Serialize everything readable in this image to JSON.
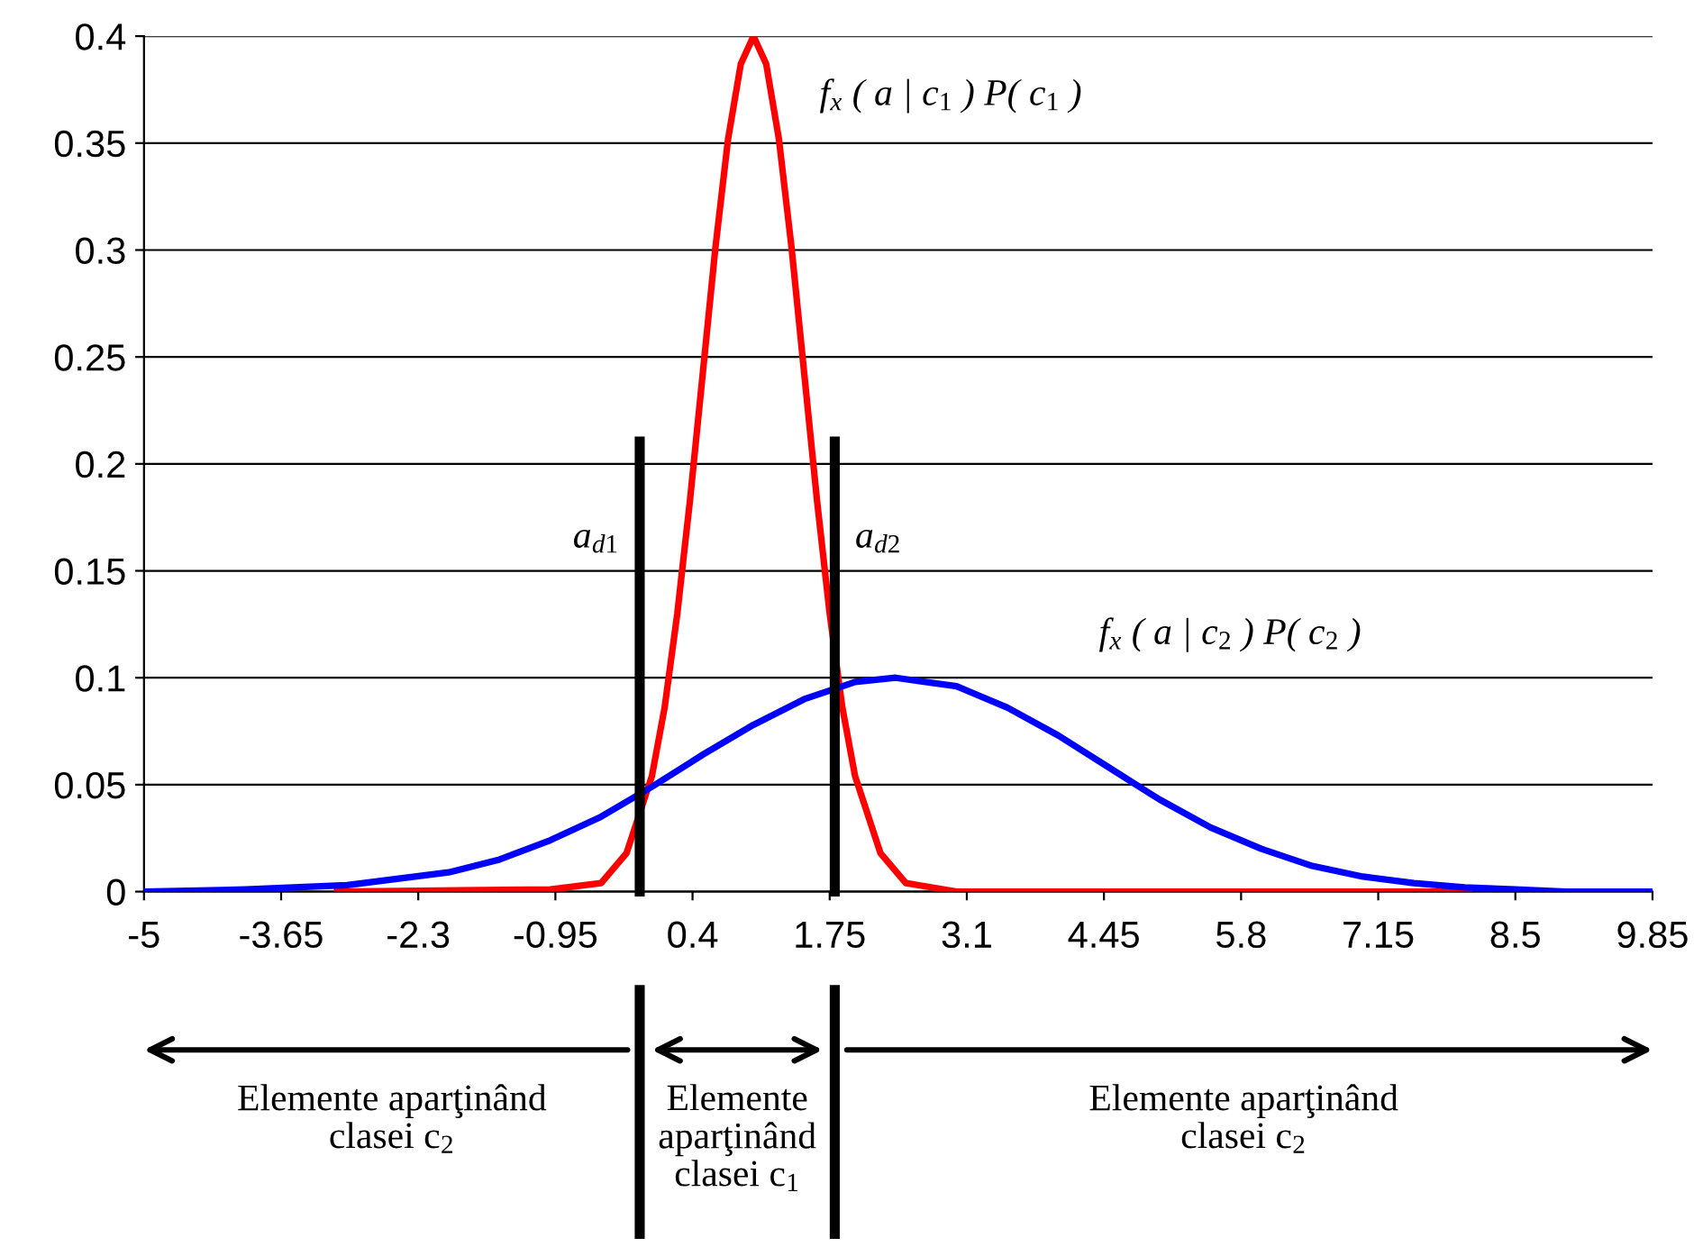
{
  "chart_data": {
    "type": "line",
    "xlim": [
      -5,
      9.85
    ],
    "ylim": [
      0,
      0.4
    ],
    "xticks": [
      -5,
      -3.65,
      -2.3,
      -0.95,
      0.4,
      1.75,
      3.1,
      4.45,
      5.8,
      7.15,
      8.5,
      9.85
    ],
    "yticks": [
      0,
      0.05,
      0.1,
      0.15,
      0.2,
      0.25,
      0.3,
      0.35,
      0.4
    ],
    "grid": "y",
    "series": [
      {
        "name": "f$_{x}$ ( a | c$_{1}$ ) P( c$_{1}$ )",
        "color": "#ff0000",
        "x": [
          -3.1,
          -1,
          -0.5,
          -0.25,
          0,
          0.125,
          0.25,
          0.375,
          0.5,
          0.625,
          0.75,
          0.875,
          1,
          1.125,
          1.25,
          1.375,
          1.5,
          1.625,
          1.75,
          1.875,
          2,
          2.25,
          2.5,
          3,
          8.05
        ],
        "values": [
          0,
          0.001,
          0.004,
          0.018,
          0.054,
          0.086,
          0.13,
          0.183,
          0.242,
          0.301,
          0.352,
          0.387,
          0.4,
          0.387,
          0.352,
          0.301,
          0.242,
          0.183,
          0.13,
          0.086,
          0.054,
          0.018,
          0.004,
          0,
          0
        ]
      },
      {
        "name": "f$_{x}$ ( a | c$_{2}$ ) P( c$_{2}$ )",
        "color": "#0000ff",
        "x": [
          -5,
          -4,
          -3,
          -2,
          -1.5,
          -1,
          -0.5,
          0,
          0.5,
          1,
          1.5,
          2,
          2.4,
          3,
          3.5,
          4,
          4.5,
          5,
          5.5,
          6,
          6.5,
          7,
          7.5,
          8,
          8.5,
          9,
          9.85
        ],
        "values": [
          0,
          0.001,
          0.003,
          0.009,
          0.015,
          0.024,
          0.035,
          0.049,
          0.064,
          0.078,
          0.09,
          0.098,
          0.1,
          0.096,
          0.086,
          0.073,
          0.058,
          0.043,
          0.03,
          0.02,
          0.012,
          0.007,
          0.004,
          0.002,
          0.001,
          0,
          0
        ]
      }
    ],
    "ref_lines": [
      {
        "axis": "x",
        "value": -0.12,
        "label": "a$_{d1}$",
        "color": "#000000"
      },
      {
        "axis": "x",
        "value": 1.8,
        "label": "a$_{d2}$",
        "color": "#000000"
      }
    ],
    "annotations": [
      "Elemente aparţinând\nclasei c$_{2}$",
      "Elemente\naparţinând\nclasei c$_{1}$",
      "Elemente aparţinând\nclasei c$_{2}$"
    ]
  }
}
